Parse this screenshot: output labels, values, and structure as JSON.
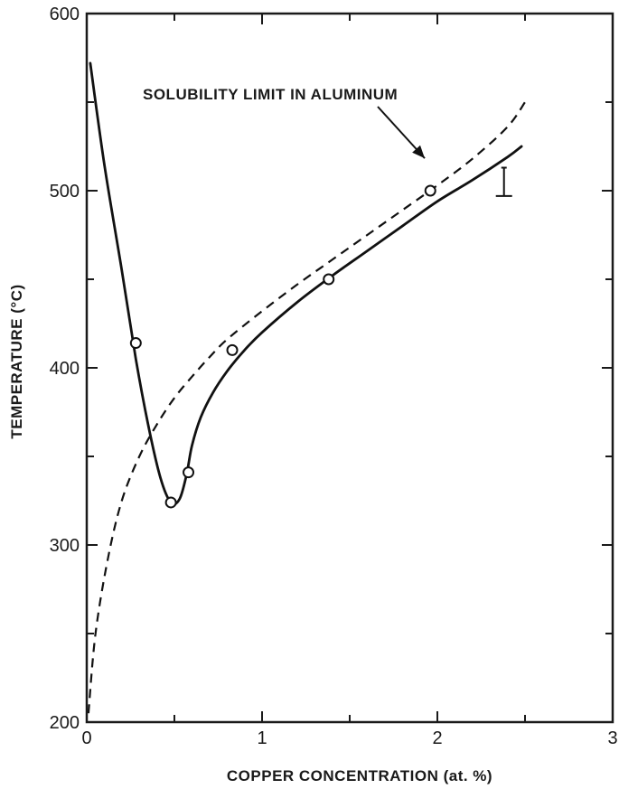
{
  "chart_data": {
    "type": "line",
    "title": "",
    "xlabel": "COPPER CONCENTRATION (at. %)",
    "ylabel": "TEMPERATURE (°C)",
    "xlim": [
      0,
      3
    ],
    "ylim": [
      200,
      600
    ],
    "x_ticks": [
      "0",
      "1",
      "2",
      "3"
    ],
    "y_ticks": [
      "200",
      "300",
      "400",
      "500",
      "600"
    ],
    "grid": false,
    "legend": "none",
    "series": [
      {
        "style": "solid",
        "x": [
          0.02,
          0.1,
          0.2,
          0.28,
          0.35,
          0.42,
          0.48,
          0.53,
          0.57,
          0.6,
          0.65,
          0.72,
          0.8,
          0.9,
          1.0,
          1.2,
          1.4,
          1.6,
          1.8,
          2.0,
          2.2,
          2.4,
          2.48
        ],
        "y": [
          572,
          515,
          455,
          405,
          368,
          338,
          324,
          326,
          340,
          356,
          372,
          386,
          398,
          410,
          420,
          437,
          452,
          466,
          480,
          494,
          506,
          519,
          525
        ]
      },
      {
        "style": "dashed",
        "x": [
          0.01,
          0.05,
          0.12,
          0.2,
          0.3,
          0.4,
          0.5,
          0.6,
          0.7,
          0.8,
          1.0,
          1.2,
          1.4,
          1.6,
          1.8,
          2.0,
          2.2,
          2.4,
          2.5
        ],
        "y": [
          205,
          250,
          292,
          325,
          350,
          368,
          383,
          395,
          406,
          416,
          432,
          447,
          461,
          475,
          489,
          503,
          518,
          536,
          550
        ]
      },
      {
        "style": "markers",
        "x": [
          0.28,
          0.48,
          0.58,
          0.83,
          1.38,
          1.96
        ],
        "y": [
          414,
          324,
          341,
          410,
          450,
          500
        ]
      }
    ],
    "annotations": [
      {
        "text": "SOLUBILITY LIMIT IN ALUMINUM",
        "points_to": {
          "x": 2.0,
          "y": 503
        }
      }
    ],
    "error_bar": {
      "x": 2.38,
      "y": 505,
      "half_range": 8
    }
  }
}
